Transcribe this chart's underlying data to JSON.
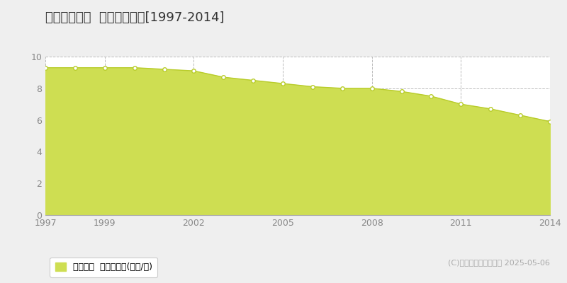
{
  "title": "大竹市珙波町  基準地価推移[1997-2014]",
  "years": [
    1997,
    1998,
    1999,
    2000,
    2001,
    2002,
    2003,
    2004,
    2005,
    2006,
    2007,
    2008,
    2009,
    2010,
    2011,
    2012,
    2013,
    2014
  ],
  "values": [
    9.3,
    9.3,
    9.3,
    9.3,
    9.2,
    9.1,
    8.7,
    8.5,
    8.3,
    8.1,
    8.0,
    8.0,
    7.8,
    7.5,
    7.0,
    6.7,
    6.3,
    5.9
  ],
  "ylim": [
    0,
    10
  ],
  "yticks": [
    0,
    2,
    4,
    6,
    8,
    10
  ],
  "xticks": [
    1997,
    1999,
    2002,
    2005,
    2008,
    2011,
    2014
  ],
  "fill_color": "#cede52",
  "line_color": "#b8cc2a",
  "marker_facecolor": "#ffffff",
  "marker_edgecolor": "#b8cc2a",
  "bg_color": "#efefef",
  "plot_bg_color": "#ffffff",
  "grid_color": "#bbbbbb",
  "legend_label": "基準地価  平均坂単価(万円/坂)",
  "legend_color": "#cede52",
  "copyright_text": "(C)土地価格ドットコム 2025-05-06",
  "title_fontsize": 13,
  "tick_fontsize": 9,
  "legend_fontsize": 9,
  "copyright_fontsize": 8
}
